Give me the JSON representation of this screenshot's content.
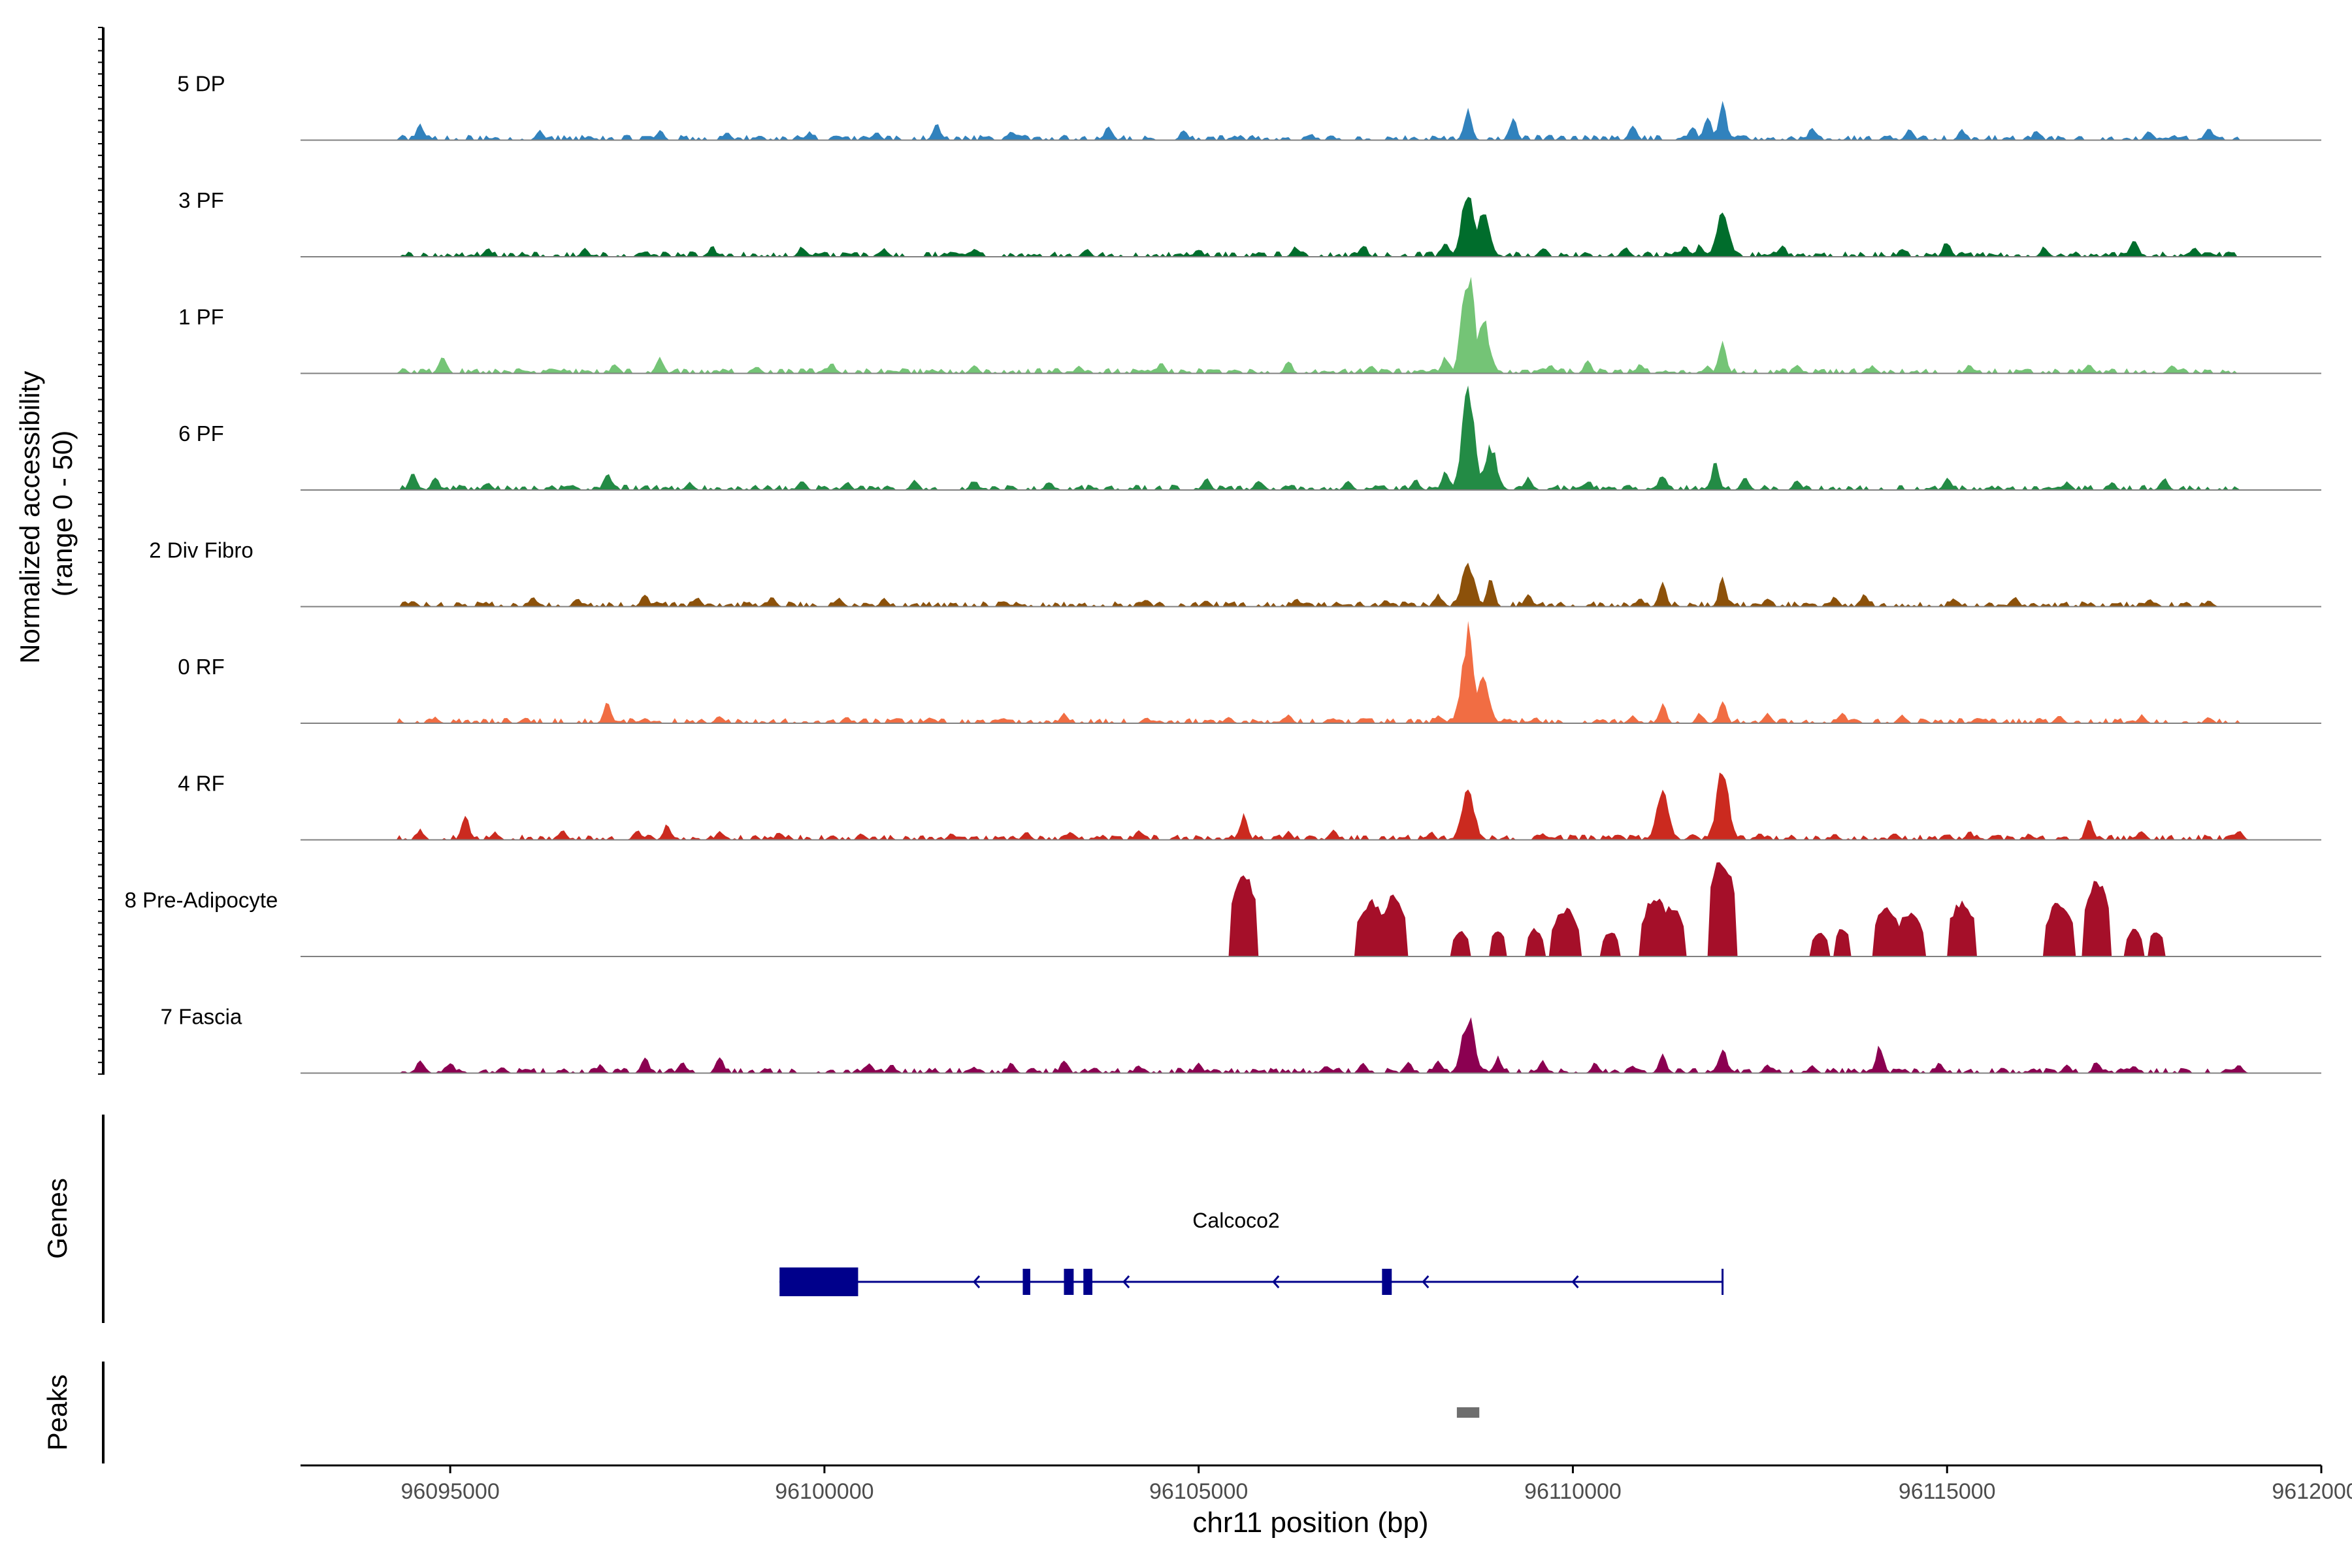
{
  "chart_data": {
    "type": "area",
    "title": "",
    "region": {
      "chrom": "chr11",
      "start": 96093000,
      "end": 96120000
    },
    "ylabel_line1": "Normalized accessibility",
    "ylabel_line2": "(range 0 - 50)",
    "ylim": [
      0,
      50
    ],
    "xlabel": "chr11 position (bp)",
    "x_ticks": [
      96095000,
      96100000,
      96105000,
      96110000,
      96115000,
      96120000
    ],
    "x_tick_labels": [
      "96095000",
      "96100000",
      "96105000",
      "96110000",
      "96115000",
      "96120000"
    ],
    "tracks": [
      {
        "name": "5 DP",
        "color": "#3182BD",
        "peaks": [
          [
            96094600,
            8
          ],
          [
            96096200,
            5
          ],
          [
            96097800,
            5
          ],
          [
            96098700,
            4
          ],
          [
            96099800,
            4
          ],
          [
            96100700,
            4
          ],
          [
            96101500,
            8
          ],
          [
            96102500,
            5
          ],
          [
            96103800,
            7
          ],
          [
            96104800,
            5
          ],
          [
            96106500,
            3
          ],
          [
            96108600,
            17
          ],
          [
            96109200,
            11
          ],
          [
            96110800,
            8
          ],
          [
            96111600,
            7
          ],
          [
            96111800,
            13
          ],
          [
            96112000,
            18
          ],
          [
            96113200,
            6
          ],
          [
            96114500,
            6
          ],
          [
            96115200,
            5
          ],
          [
            96116200,
            5
          ],
          [
            96117700,
            5
          ],
          [
            96118500,
            7
          ]
        ],
        "base_level": 1.5
      },
      {
        "name": "3 PF",
        "color": "#006D2C",
        "peaks": [
          [
            96095500,
            4
          ],
          [
            96096800,
            4
          ],
          [
            96097600,
            3
          ],
          [
            96098500,
            5
          ],
          [
            96099700,
            5
          ],
          [
            96100800,
            4
          ],
          [
            96102000,
            4
          ],
          [
            96103500,
            4
          ],
          [
            96105000,
            4
          ],
          [
            96106300,
            5
          ],
          [
            96107200,
            6
          ],
          [
            96108300,
            7
          ],
          [
            96108600,
            33
          ],
          [
            96108800,
            22
          ],
          [
            96109600,
            5
          ],
          [
            96110700,
            5
          ],
          [
            96111500,
            5
          ],
          [
            96111700,
            6
          ],
          [
            96112000,
            21
          ],
          [
            96112800,
            6
          ],
          [
            96114400,
            4
          ],
          [
            96115000,
            8
          ],
          [
            96116300,
            5
          ],
          [
            96117500,
            9
          ],
          [
            96118300,
            5
          ]
        ],
        "base_level": 1.5
      },
      {
        "name": "1 PF",
        "color": "#74C476",
        "peaks": [
          [
            96094900,
            8
          ],
          [
            96097200,
            5
          ],
          [
            96097800,
            8
          ],
          [
            96099100,
            4
          ],
          [
            96100100,
            5
          ],
          [
            96102000,
            4
          ],
          [
            96103400,
            4
          ],
          [
            96104500,
            5
          ],
          [
            96106200,
            6
          ],
          [
            96107300,
            4
          ],
          [
            96108300,
            8
          ],
          [
            96108600,
            50
          ],
          [
            96108800,
            28
          ],
          [
            96109700,
            4
          ],
          [
            96110200,
            6
          ],
          [
            96110900,
            5
          ],
          [
            96111800,
            4
          ],
          [
            96112000,
            17
          ],
          [
            96113000,
            4
          ],
          [
            96114000,
            4
          ],
          [
            96115300,
            4
          ],
          [
            96116900,
            5
          ],
          [
            96118000,
            4
          ]
        ],
        "base_level": 1.5
      },
      {
        "name": "6 PF",
        "color": "#238B45",
        "peaks": [
          [
            96094500,
            9
          ],
          [
            96094800,
            6
          ],
          [
            96095500,
            4
          ],
          [
            96097100,
            8
          ],
          [
            96098200,
            4
          ],
          [
            96099700,
            5
          ],
          [
            96100300,
            4
          ],
          [
            96101200,
            5
          ],
          [
            96102000,
            5
          ],
          [
            96103000,
            4
          ],
          [
            96105100,
            6
          ],
          [
            96105800,
            5
          ],
          [
            96107000,
            5
          ],
          [
            96107900,
            5
          ],
          [
            96108300,
            9
          ],
          [
            96108600,
            50
          ],
          [
            96108900,
            22
          ],
          [
            96109400,
            6
          ],
          [
            96110200,
            5
          ],
          [
            96111200,
            8
          ],
          [
            96111900,
            13
          ],
          [
            96112300,
            7
          ],
          [
            96113000,
            5
          ],
          [
            96115000,
            6
          ],
          [
            96116600,
            4
          ],
          [
            96117200,
            4
          ],
          [
            96117900,
            6
          ]
        ],
        "base_level": 1.5
      },
      {
        "name": "2 Div Fibro",
        "color": "#8C510A",
        "peaks": [
          [
            96094500,
            3
          ],
          [
            96096100,
            5
          ],
          [
            96096700,
            4
          ],
          [
            96097600,
            6
          ],
          [
            96098300,
            5
          ],
          [
            96099300,
            5
          ],
          [
            96100200,
            4
          ],
          [
            96100800,
            4
          ],
          [
            96102400,
            3
          ],
          [
            96104300,
            4
          ],
          [
            96105100,
            3
          ],
          [
            96106300,
            4
          ],
          [
            96107500,
            3
          ],
          [
            96108200,
            6
          ],
          [
            96108600,
            22
          ],
          [
            96108900,
            14
          ],
          [
            96109400,
            6
          ],
          [
            96110900,
            4
          ],
          [
            96111200,
            11
          ],
          [
            96112000,
            14
          ],
          [
            96112600,
            4
          ],
          [
            96113500,
            5
          ],
          [
            96113900,
            6
          ],
          [
            96115100,
            4
          ],
          [
            96115900,
            5
          ],
          [
            96117700,
            4
          ],
          [
            96118500,
            3
          ]
        ],
        "base_level": 1.5
      },
      {
        "name": "0 RF",
        "color": "#F16D43",
        "peaks": [
          [
            96094800,
            3
          ],
          [
            96096000,
            3
          ],
          [
            96097100,
            10
          ],
          [
            96097600,
            3
          ],
          [
            96098600,
            4
          ],
          [
            96100300,
            3
          ],
          [
            96101400,
            3
          ],
          [
            96102400,
            3
          ],
          [
            96103200,
            5
          ],
          [
            96104300,
            3
          ],
          [
            96105400,
            3
          ],
          [
            96106200,
            4
          ],
          [
            96107200,
            3
          ],
          [
            96108200,
            4
          ],
          [
            96108600,
            45
          ],
          [
            96108800,
            22
          ],
          [
            96109500,
            3
          ],
          [
            96110800,
            4
          ],
          [
            96111200,
            9
          ],
          [
            96111700,
            5
          ],
          [
            96112000,
            11
          ],
          [
            96112600,
            5
          ],
          [
            96113600,
            5
          ],
          [
            96114400,
            4
          ],
          [
            96115400,
            3
          ],
          [
            96116500,
            4
          ],
          [
            96117600,
            4
          ],
          [
            96118500,
            3
          ]
        ],
        "base_level": 1.5
      },
      {
        "name": "4 RF",
        "color": "#CB2A1F",
        "peaks": [
          [
            96094600,
            5
          ],
          [
            96095200,
            12
          ],
          [
            96095600,
            4
          ],
          [
            96096500,
            5
          ],
          [
            96097500,
            5
          ],
          [
            96097900,
            8
          ],
          [
            96098600,
            4
          ],
          [
            96099400,
            4
          ],
          [
            96100500,
            3
          ],
          [
            96101700,
            3
          ],
          [
            96102700,
            4
          ],
          [
            96103300,
            4
          ],
          [
            96104200,
            5
          ],
          [
            96105600,
            12
          ],
          [
            96106200,
            4
          ],
          [
            96106800,
            5
          ],
          [
            96108100,
            4
          ],
          [
            96108600,
            25
          ],
          [
            96109600,
            3
          ],
          [
            96110600,
            3
          ],
          [
            96111200,
            22
          ],
          [
            96111600,
            3
          ],
          [
            96112000,
            33
          ],
          [
            96112500,
            3
          ],
          [
            96113500,
            3
          ],
          [
            96114300,
            4
          ],
          [
            96115300,
            4
          ],
          [
            96116100,
            3
          ],
          [
            96116900,
            11
          ],
          [
            96117600,
            5
          ],
          [
            96118900,
            5
          ]
        ],
        "base_level": 1.5
      },
      {
        "name": "8 Pre-Adipocyte",
        "color": "#A50F29",
        "peaks": [
          [
            96105600,
            42
          ],
          [
            96107300,
            28
          ],
          [
            96107600,
            30
          ],
          [
            96108500,
            13
          ],
          [
            96109000,
            13
          ],
          [
            96109500,
            14
          ],
          [
            96109900,
            24
          ],
          [
            96110500,
            13
          ],
          [
            96111100,
            30
          ],
          [
            96111300,
            26
          ],
          [
            96112000,
            50
          ],
          [
            96113300,
            13
          ],
          [
            96113600,
            14
          ],
          [
            96114200,
            25
          ],
          [
            96114500,
            22
          ],
          [
            96115200,
            28
          ],
          [
            96116500,
            28
          ],
          [
            96117000,
            38
          ],
          [
            96117500,
            14
          ],
          [
            96117800,
            13
          ]
        ],
        "base_level": 0
      },
      {
        "name": "7 Fascia",
        "color": "#8B0051",
        "peaks": [
          [
            96094600,
            7
          ],
          [
            96095000,
            5
          ],
          [
            96095700,
            3
          ],
          [
            96097000,
            4
          ],
          [
            96097600,
            8
          ],
          [
            96098100,
            6
          ],
          [
            96098600,
            8
          ],
          [
            96100600,
            5
          ],
          [
            96100900,
            4
          ],
          [
            96102000,
            3
          ],
          [
            96102500,
            5
          ],
          [
            96103200,
            6
          ],
          [
            96103600,
            3
          ],
          [
            96104200,
            4
          ],
          [
            96105000,
            5
          ],
          [
            96106700,
            4
          ],
          [
            96107200,
            5
          ],
          [
            96107800,
            6
          ],
          [
            96108200,
            7
          ],
          [
            96108600,
            28
          ],
          [
            96109000,
            8
          ],
          [
            96109600,
            6
          ],
          [
            96110300,
            5
          ],
          [
            96110800,
            4
          ],
          [
            96111200,
            9
          ],
          [
            96112000,
            13
          ],
          [
            96112600,
            4
          ],
          [
            96113200,
            4
          ],
          [
            96114100,
            14
          ],
          [
            96114900,
            5
          ],
          [
            96116600,
            4
          ],
          [
            96117000,
            6
          ],
          [
            96117500,
            4
          ],
          [
            96118900,
            4
          ]
        ],
        "base_level": 1.5
      }
    ],
    "genes_label": "Genes",
    "gene": {
      "name": "Calcoco2",
      "strand": "-",
      "start": 96099400,
      "end": 96112000,
      "color": "#00008B",
      "exons": [
        [
          96099400,
          96100450
        ],
        [
          96102650,
          96102750
        ],
        [
          96103200,
          96103330
        ],
        [
          96103460,
          96103580
        ],
        [
          96107450,
          96107580
        ]
      ]
    },
    "peaks_label": "Peaks",
    "peak_regions": [
      [
        96108450,
        96108750
      ]
    ],
    "peak_color": "#6E6E6E"
  }
}
